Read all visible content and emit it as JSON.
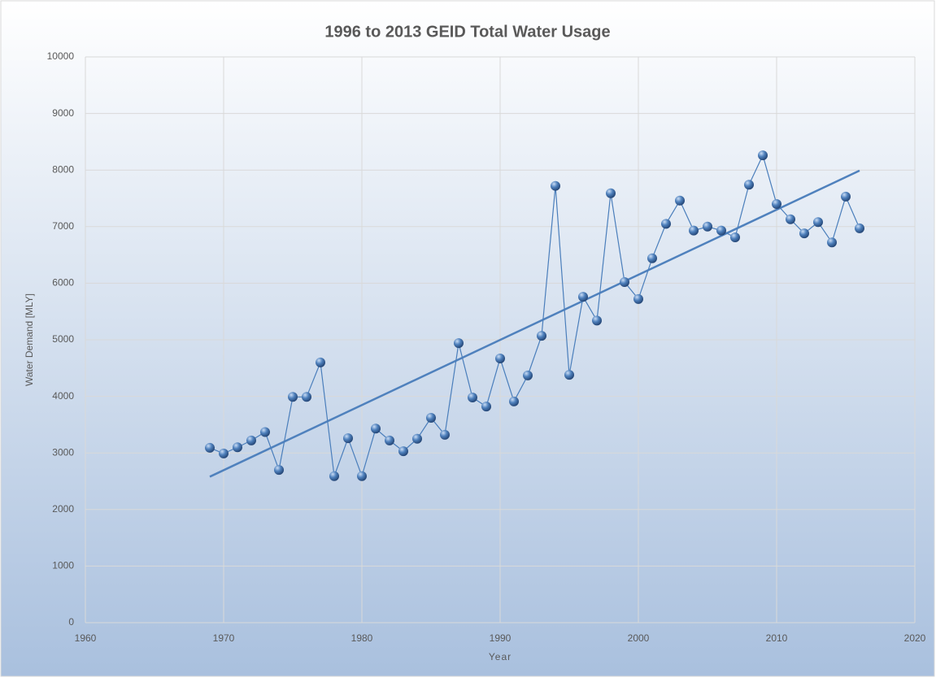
{
  "chart_data": {
    "type": "scatter",
    "title": "1996 to 2013 GEID Total Water Usage",
    "x_label": "Year",
    "y_label": "Water Demand [MLY]",
    "xlim": [
      1960,
      2020
    ],
    "xticks": [
      1960,
      1970,
      1980,
      1990,
      2000,
      2010,
      2020
    ],
    "ylim": [
      0,
      10000
    ],
    "yticks": [
      0,
      1000,
      2000,
      3000,
      4000,
      5000,
      6000,
      7000,
      8000,
      9000,
      10000
    ],
    "grid": true,
    "x": [
      1969,
      1970,
      1971,
      1972,
      1973,
      1974,
      1975,
      1976,
      1977,
      1978,
      1979,
      1980,
      1981,
      1982,
      1983,
      1984,
      1985,
      1986,
      1987,
      1988,
      1989,
      1990,
      1991,
      1992,
      1993,
      1994,
      1995,
      1996,
      1997,
      1998,
      1999,
      2000,
      2001,
      2002,
      2003,
      2004,
      2005,
      2006,
      2007,
      2008,
      2009,
      2010,
      2011,
      2012,
      2013,
      2014,
      2015,
      2016
    ],
    "values": [
      3090,
      2990,
      3100,
      3220,
      3370,
      2700,
      3990,
      3990,
      4600,
      2590,
      3260,
      2590,
      3430,
      3220,
      3030,
      3250,
      3620,
      3320,
      4940,
      3980,
      3820,
      4670,
      3910,
      4370,
      5070,
      7720,
      4380,
      5760,
      5340,
      7590,
      6020,
      5720,
      6440,
      7050,
      7460,
      6930,
      7000,
      6930,
      6810,
      7740,
      8260,
      7400,
      7130,
      6880,
      7080,
      6720,
      7530,
      6970
    ],
    "color": "#4a7ebb",
    "trendline": {
      "x": [
        1969,
        2016
      ],
      "values": [
        2580,
        7990
      ],
      "color": "#4f81bd"
    }
  }
}
